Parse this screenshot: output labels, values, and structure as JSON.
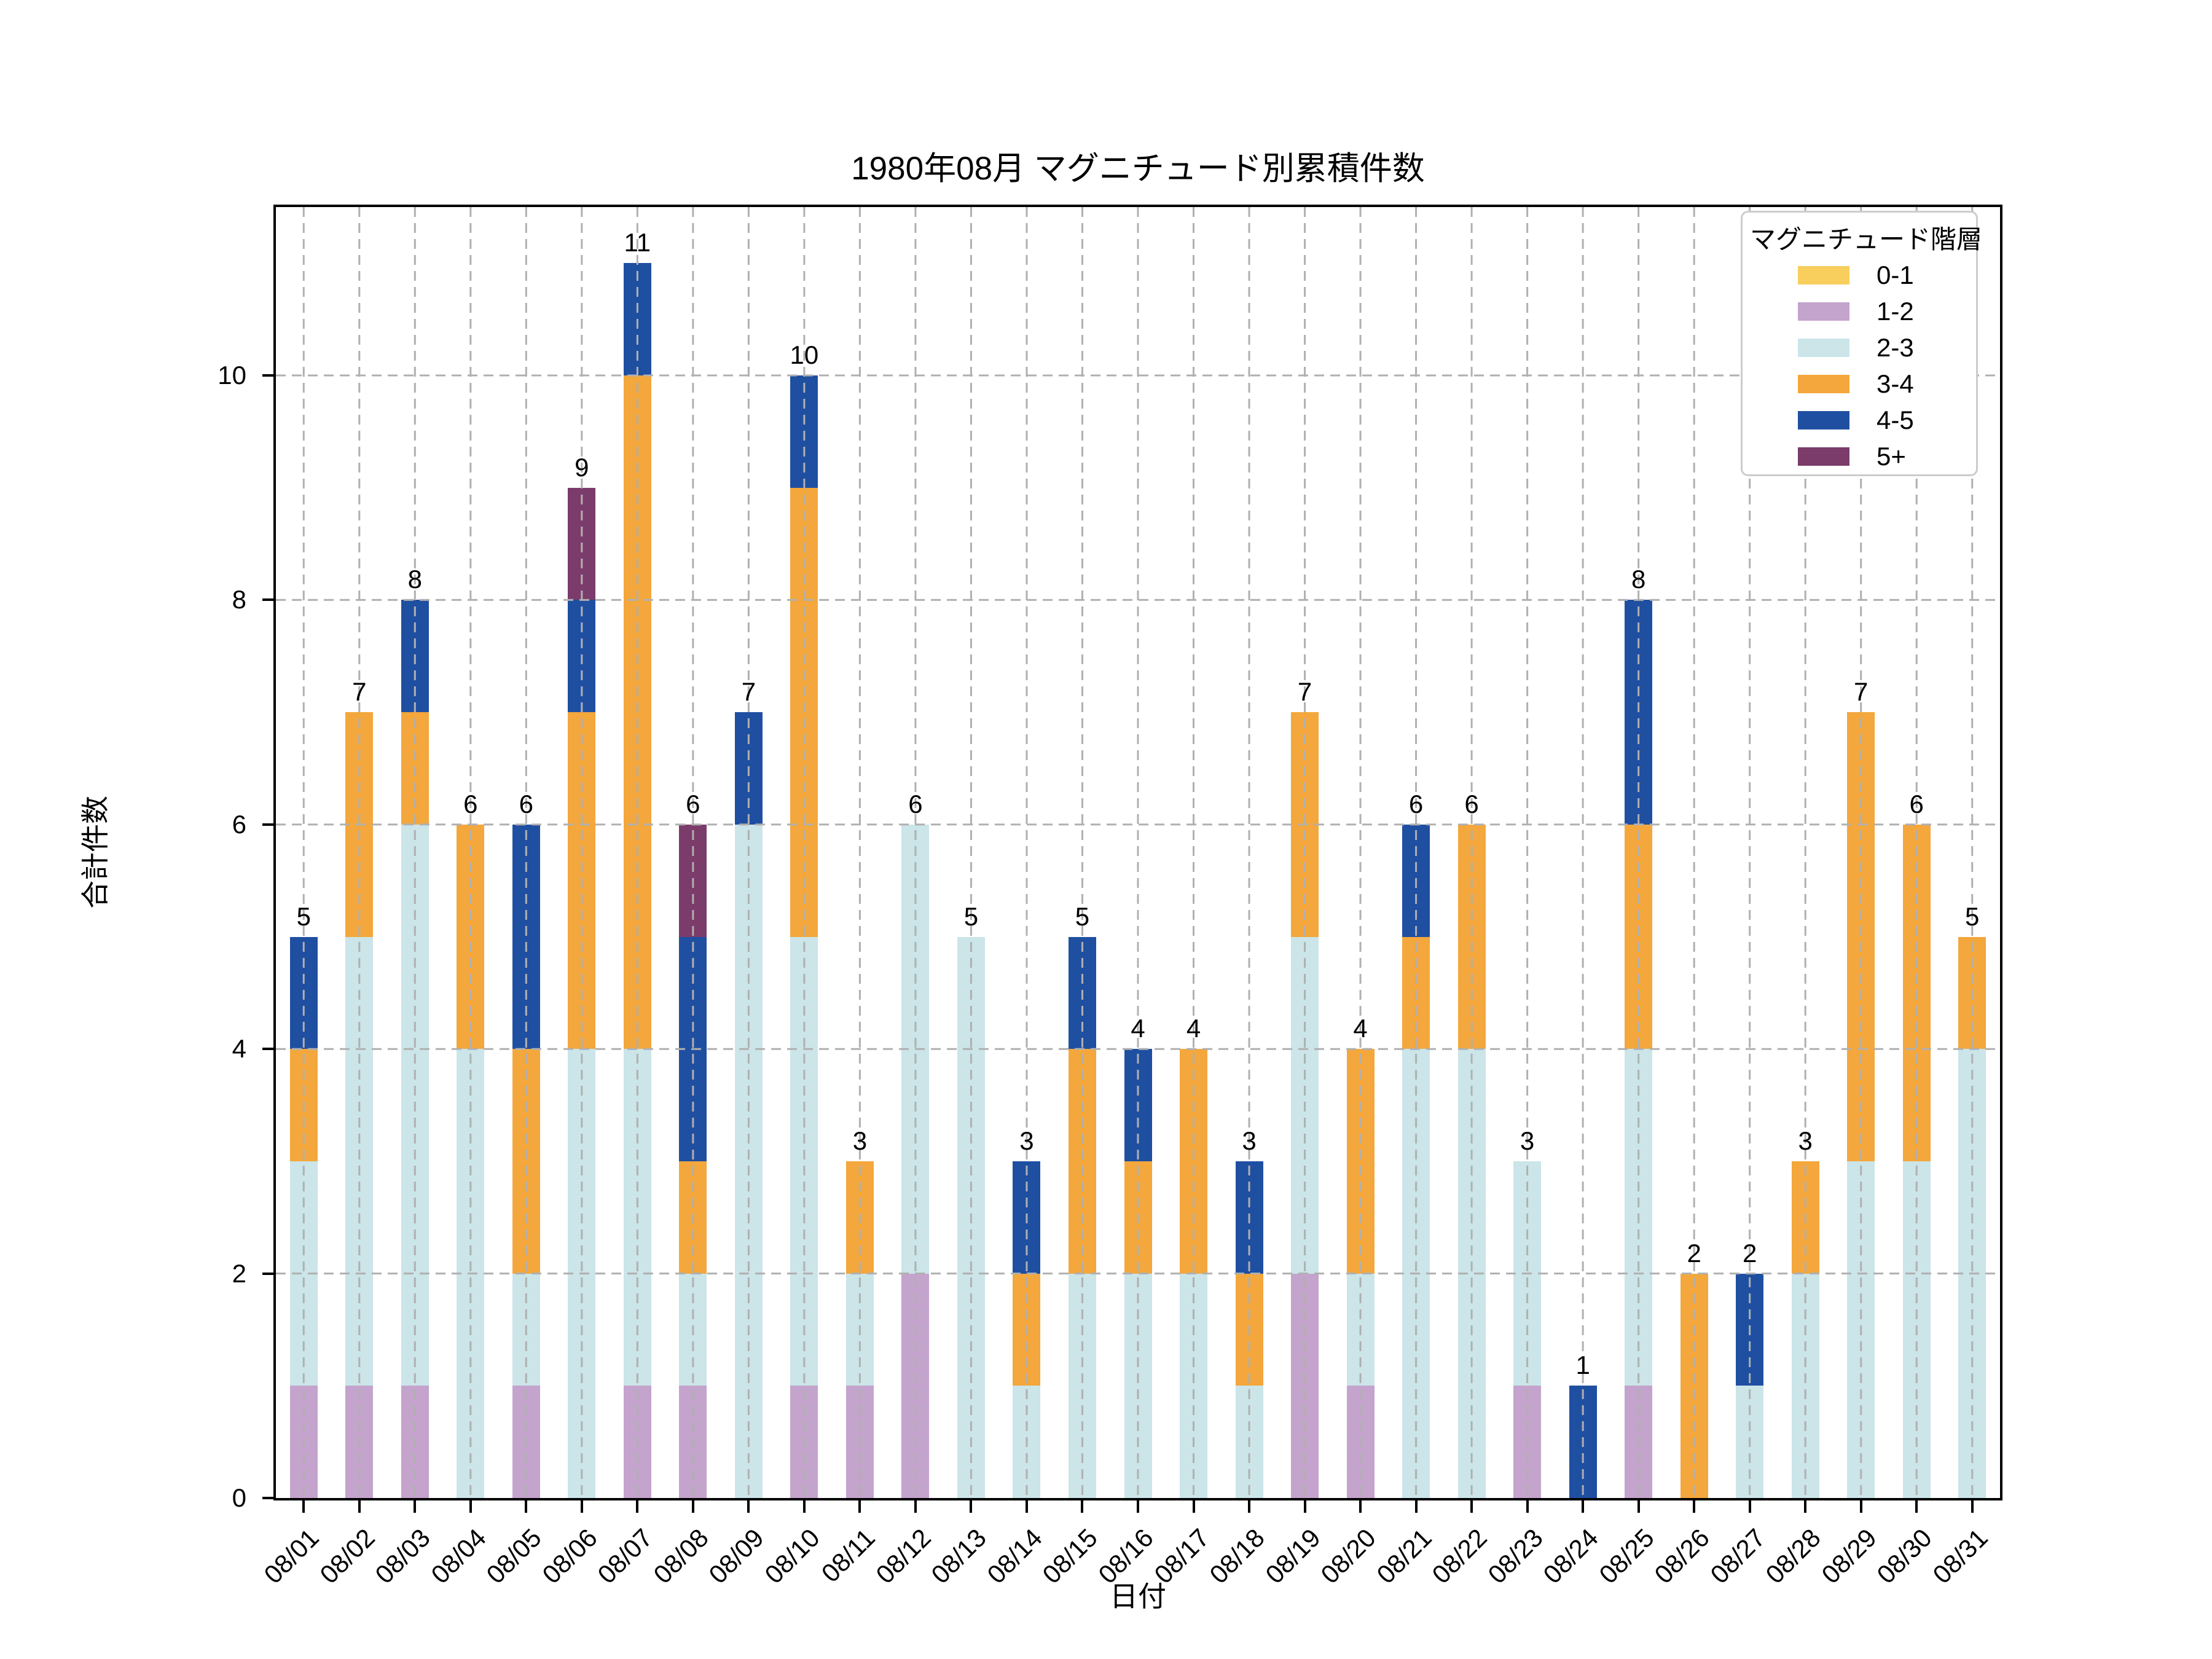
{
  "title": "1980年08月 マグニチュード別累積件数",
  "axes": {
    "xlabel": "日付",
    "ylabel": "合計件数",
    "yticks": [
      0,
      2,
      4,
      6,
      8,
      10
    ],
    "ylim": [
      0,
      11.5
    ],
    "grid": "dashed",
    "grid_color": "#b0b0b0"
  },
  "legend": {
    "title": "マグニチュード階層",
    "position": "upper right"
  },
  "chart_data": {
    "type": "bar",
    "stacked": true,
    "title": "1980年08月 マグニチュード別累積件数",
    "xlabel": "日付",
    "ylabel": "合計件数",
    "ylim": [
      0,
      11.5
    ],
    "categories": [
      "08/01",
      "08/02",
      "08/03",
      "08/04",
      "08/05",
      "08/06",
      "08/07",
      "08/08",
      "08/09",
      "08/10",
      "08/11",
      "08/12",
      "08/13",
      "08/14",
      "08/15",
      "08/16",
      "08/17",
      "08/18",
      "08/19",
      "08/20",
      "08/21",
      "08/22",
      "08/23",
      "08/24",
      "08/25",
      "08/26",
      "08/27",
      "08/28",
      "08/29",
      "08/30",
      "08/31"
    ],
    "series": [
      {
        "name": "0-1",
        "color": "#F8CE5D",
        "values": [
          0,
          0,
          0,
          0,
          0,
          0,
          0,
          0,
          0,
          0,
          0,
          0,
          0,
          0,
          0,
          0,
          0,
          0,
          0,
          0,
          0,
          0,
          0,
          0,
          0,
          0,
          0,
          0,
          0,
          0,
          0
        ]
      },
      {
        "name": "1-2",
        "color": "#C4A3CC",
        "values": [
          1,
          1,
          1,
          0,
          1,
          0,
          1,
          1,
          0,
          1,
          1,
          2,
          0,
          0,
          0,
          0,
          0,
          0,
          2,
          1,
          0,
          0,
          1,
          0,
          1,
          0,
          0,
          0,
          0,
          0,
          0
        ]
      },
      {
        "name": "2-3",
        "color": "#CBE5E9",
        "values": [
          2,
          4,
          5,
          4,
          1,
          4,
          3,
          1,
          6,
          4,
          1,
          4,
          5,
          1,
          2,
          2,
          2,
          1,
          3,
          1,
          4,
          4,
          2,
          0,
          3,
          0,
          1,
          2,
          3,
          3,
          4
        ]
      },
      {
        "name": "3-4",
        "color": "#F3A73C",
        "values": [
          1,
          2,
          1,
          2,
          2,
          3,
          6,
          1,
          0,
          4,
          1,
          0,
          0,
          1,
          2,
          1,
          2,
          1,
          2,
          2,
          1,
          2,
          0,
          0,
          2,
          2,
          0,
          1,
          4,
          3,
          1
        ]
      },
      {
        "name": "4-5",
        "color": "#1F4FA1",
        "values": [
          1,
          0,
          1,
          0,
          2,
          1,
          1,
          2,
          1,
          1,
          0,
          0,
          0,
          1,
          1,
          1,
          0,
          1,
          0,
          0,
          1,
          0,
          0,
          1,
          2,
          0,
          1,
          0,
          0,
          0,
          0
        ]
      },
      {
        "name": "5+",
        "color": "#7B3B6B",
        "values": [
          0,
          0,
          0,
          0,
          0,
          1,
          0,
          1,
          0,
          0,
          0,
          0,
          0,
          0,
          0,
          0,
          0,
          0,
          0,
          0,
          0,
          0,
          0,
          0,
          0,
          0,
          0,
          0,
          0,
          0,
          0
        ]
      }
    ],
    "totals": [
      5,
      7,
      8,
      6,
      6,
      9,
      11,
      6,
      7,
      10,
      3,
      6,
      5,
      3,
      5,
      4,
      4,
      3,
      7,
      4,
      6,
      6,
      3,
      1,
      8,
      2,
      2,
      3,
      7,
      6,
      5
    ]
  }
}
